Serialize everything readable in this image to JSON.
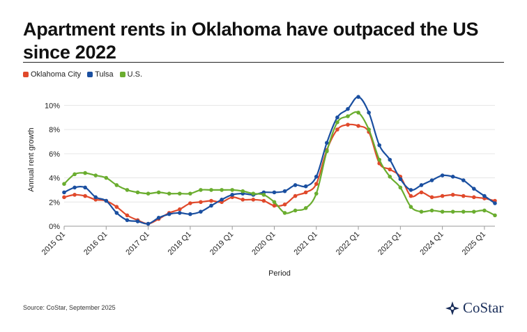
{
  "title": "Apartment rents in Oklahoma have outpaced the US since 2022",
  "source": "Source: CoStar, September 2025",
  "logo_text": "CoStar",
  "legend": [
    {
      "name": "Oklahoma City",
      "color": "#e0492b"
    },
    {
      "name": "Tulsa",
      "color": "#1a4fa0"
    },
    {
      "name": "U.S.",
      "color": "#6aad2f"
    }
  ],
  "chart_data": {
    "type": "line",
    "title": "Apartment rents in Oklahoma have outpaced the US since 2022",
    "xlabel": "Period",
    "ylabel": "Annual rent growth",
    "ylim": [
      0,
      11
    ],
    "yticks": [
      0,
      2,
      4,
      6,
      8,
      10
    ],
    "ytick_labels": [
      "0%",
      "2%",
      "4%",
      "6%",
      "8%",
      "10%"
    ],
    "x": [
      "2015 Q1",
      "2015 Q2",
      "2015 Q3",
      "2015 Q4",
      "2016 Q1",
      "2016 Q2",
      "2016 Q3",
      "2016 Q4",
      "2017 Q1",
      "2017 Q2",
      "2017 Q3",
      "2017 Q4",
      "2018 Q1",
      "2018 Q2",
      "2018 Q3",
      "2018 Q4",
      "2019 Q1",
      "2019 Q2",
      "2019 Q3",
      "2019 Q4",
      "2020 Q1",
      "2020 Q2",
      "2020 Q3",
      "2020 Q4",
      "2021 Q1",
      "2021 Q2",
      "2021 Q3",
      "2021 Q4",
      "2022 Q1",
      "2022 Q2",
      "2022 Q3",
      "2022 Q4",
      "2023 Q1",
      "2023 Q2",
      "2023 Q3",
      "2023 Q4",
      "2024 Q1",
      "2024 Q2",
      "2024 Q3",
      "2024 Q4",
      "2025 Q1",
      "2025 Q2"
    ],
    "xtick_labels": [
      "2015 Q1",
      "2016 Q1",
      "2017 Q1",
      "2018 Q1",
      "2019 Q1",
      "2020 Q1",
      "2021 Q1",
      "2022 Q1",
      "2023 Q1",
      "2024 Q1",
      "2025 Q1"
    ],
    "grid": true,
    "legend_position": "top-left",
    "series": [
      {
        "name": "Oklahoma City",
        "color": "#e0492b",
        "values": [
          2.4,
          2.6,
          2.5,
          2.2,
          2.1,
          1.6,
          0.9,
          0.5,
          0.2,
          0.6,
          1.1,
          1.4,
          1.9,
          2.0,
          2.1,
          2.0,
          2.4,
          2.2,
          2.2,
          2.1,
          1.7,
          1.8,
          2.5,
          2.8,
          3.5,
          6.3,
          8.0,
          8.4,
          8.3,
          7.8,
          5.2,
          4.7,
          4.1,
          2.5,
          2.8,
          2.4,
          2.5,
          2.6,
          2.5,
          2.4,
          2.3,
          2.1
        ]
      },
      {
        "name": "Tulsa",
        "color": "#1a4fa0",
        "values": [
          2.8,
          3.2,
          3.2,
          2.4,
          2.1,
          1.1,
          0.5,
          0.4,
          0.2,
          0.7,
          1.0,
          1.1,
          1.0,
          1.2,
          1.7,
          2.2,
          2.6,
          2.7,
          2.6,
          2.8,
          2.8,
          2.9,
          3.4,
          3.3,
          4.1,
          6.9,
          9.0,
          9.7,
          10.7,
          9.4,
          6.7,
          5.5,
          3.9,
          3.0,
          3.4,
          3.8,
          4.2,
          4.1,
          3.8,
          3.1,
          2.5,
          1.9
        ]
      },
      {
        "name": "U.S.",
        "color": "#6aad2f",
        "values": [
          3.5,
          4.3,
          4.4,
          4.2,
          4.0,
          3.4,
          3.0,
          2.8,
          2.7,
          2.8,
          2.7,
          2.7,
          2.7,
          3.0,
          3.0,
          3.0,
          3.0,
          2.9,
          2.7,
          2.6,
          2.0,
          1.1,
          1.3,
          1.5,
          2.7,
          6.2,
          8.6,
          9.1,
          9.4,
          8.0,
          5.5,
          4.1,
          3.2,
          1.6,
          1.2,
          1.3,
          1.2,
          1.2,
          1.2,
          1.2,
          1.3,
          0.9
        ]
      }
    ]
  }
}
